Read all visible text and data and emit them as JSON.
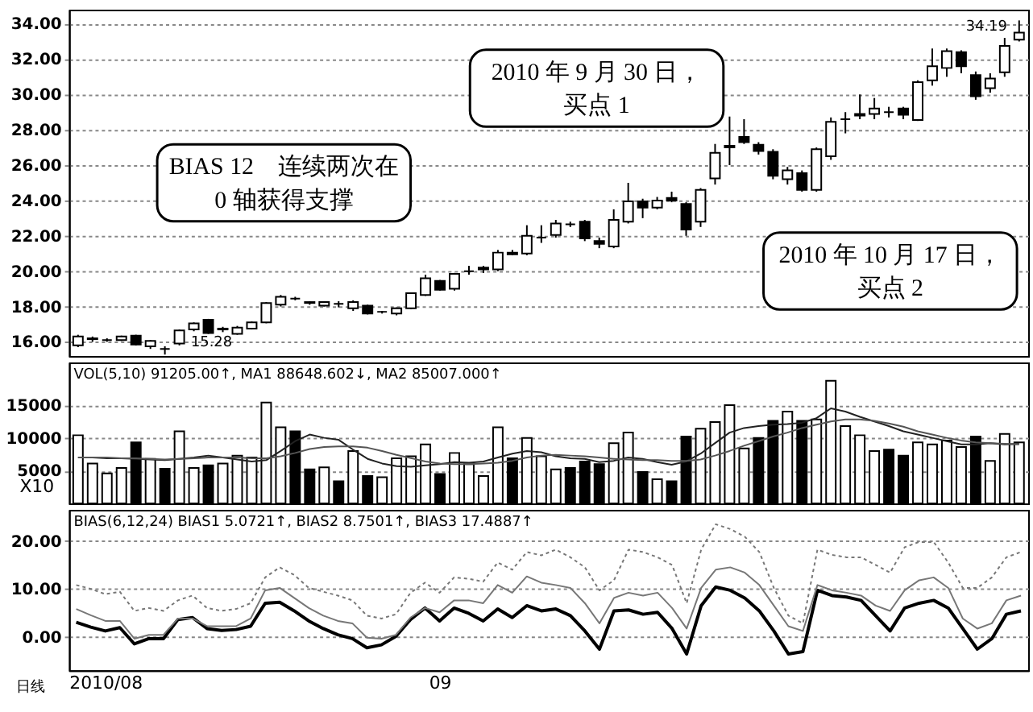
{
  "chart_data": [
    {
      "type": "candlestick",
      "categories": [
        null,
        null,
        null,
        null,
        null,
        null,
        null,
        null,
        null,
        null,
        null,
        null,
        null,
        null,
        null,
        null,
        null,
        null,
        null,
        null,
        null,
        null,
        null,
        null,
        null,
        null,
        null,
        null,
        null,
        null,
        null,
        null,
        null,
        null,
        null,
        null,
        null,
        null,
        null,
        null,
        null,
        null,
        null,
        null,
        null,
        null,
        null,
        null,
        null,
        null,
        null,
        null,
        null,
        null,
        null,
        null,
        null,
        null,
        null,
        null,
        null,
        null,
        null,
        null,
        null,
        null
      ],
      "ohlc": [
        [
          15.8,
          16.4,
          15.7,
          16.3
        ],
        [
          16.15,
          16.3,
          16.0,
          16.2
        ],
        [
          16.1,
          16.2,
          16.0,
          16.1
        ],
        [
          16.1,
          16.35,
          16.05,
          16.3
        ],
        [
          16.35,
          16.4,
          15.8,
          15.85
        ],
        [
          15.75,
          16.1,
          15.6,
          16.05
        ],
        [
          15.6,
          15.75,
          15.28,
          15.6
        ],
        [
          15.9,
          16.7,
          15.8,
          16.65
        ],
        [
          16.7,
          17.1,
          16.6,
          17.05
        ],
        [
          17.25,
          17.3,
          16.45,
          16.5
        ],
        [
          16.75,
          16.85,
          16.55,
          16.7
        ],
        [
          16.45,
          16.9,
          16.4,
          16.8
        ],
        [
          16.75,
          17.15,
          16.7,
          17.1
        ],
        [
          17.1,
          18.25,
          17.05,
          18.2
        ],
        [
          18.1,
          18.65,
          18.0,
          18.55
        ],
        [
          18.45,
          18.55,
          18.35,
          18.45
        ],
        [
          18.25,
          18.3,
          18.1,
          18.2
        ],
        [
          18.05,
          18.3,
          18.0,
          18.25
        ],
        [
          18.15,
          18.3,
          17.95,
          18.15
        ],
        [
          17.9,
          18.35,
          17.75,
          18.25
        ],
        [
          18.05,
          18.1,
          17.55,
          17.6
        ],
        [
          17.7,
          17.75,
          17.6,
          17.7
        ],
        [
          17.6,
          17.95,
          17.5,
          17.9
        ],
        [
          17.9,
          18.8,
          17.85,
          18.75
        ],
        [
          18.65,
          19.8,
          18.6,
          19.6
        ],
        [
          19.45,
          19.5,
          18.9,
          18.95
        ],
        [
          19.0,
          19.9,
          18.9,
          19.85
        ],
        [
          20.0,
          20.3,
          19.8,
          20.0
        ],
        [
          20.2,
          20.3,
          19.9,
          20.1
        ],
        [
          20.1,
          21.2,
          20.0,
          21.05
        ],
        [
          21.05,
          21.2,
          20.9,
          20.95
        ],
        [
          21.0,
          22.6,
          20.9,
          22.0
        ],
        [
          21.9,
          22.6,
          21.6,
          21.9
        ],
        [
          22.05,
          22.9,
          21.9,
          22.7
        ],
        [
          22.65,
          22.8,
          22.5,
          22.65
        ],
        [
          22.8,
          22.9,
          21.7,
          21.85
        ],
        [
          21.7,
          21.9,
          21.3,
          21.55
        ],
        [
          21.4,
          23.5,
          21.3,
          22.9
        ],
        [
          22.8,
          25.0,
          22.7,
          23.95
        ],
        [
          23.95,
          24.1,
          23.0,
          23.6
        ],
        [
          23.6,
          24.2,
          23.5,
          24.0
        ],
        [
          24.15,
          24.5,
          23.9,
          24.0
        ],
        [
          23.8,
          23.9,
          22.0,
          22.35
        ],
        [
          22.8,
          24.7,
          22.5,
          24.6
        ],
        [
          25.25,
          27.2,
          24.9,
          26.7
        ],
        [
          27.1,
          28.75,
          26.0,
          27.0
        ],
        [
          27.6,
          28.6,
          27.2,
          27.3
        ],
        [
          27.15,
          27.3,
          26.6,
          26.8
        ],
        [
          26.75,
          26.9,
          25.2,
          25.4
        ],
        [
          25.2,
          25.9,
          24.9,
          25.7
        ],
        [
          25.55,
          25.7,
          24.5,
          24.6
        ],
        [
          24.6,
          27.0,
          24.5,
          26.9
        ],
        [
          26.5,
          28.7,
          26.3,
          28.45
        ],
        [
          28.6,
          29.0,
          27.8,
          28.6
        ],
        [
          28.9,
          30.0,
          28.6,
          28.8
        ],
        [
          28.9,
          29.8,
          28.6,
          29.2
        ],
        [
          29.0,
          29.3,
          28.7,
          29.0
        ],
        [
          29.2,
          29.3,
          28.6,
          28.85
        ],
        [
          28.55,
          30.8,
          28.5,
          30.7
        ],
        [
          30.8,
          32.6,
          30.5,
          31.6
        ],
        [
          31.5,
          32.6,
          31.0,
          32.45
        ],
        [
          32.4,
          32.5,
          31.2,
          31.6
        ],
        [
          31.1,
          31.3,
          29.7,
          29.9
        ],
        [
          30.35,
          31.2,
          30.1,
          30.9
        ],
        [
          31.25,
          33.2,
          31.0,
          32.75
        ],
        [
          33.1,
          34.19,
          33.0,
          33.5
        ]
      ],
      "ylim": [
        15.2,
        34.8
      ],
      "yticks": [
        {
          "value": 16,
          "label": "16.00"
        },
        {
          "value": 18,
          "label": "18.00"
        },
        {
          "value": 20,
          "label": "20.00"
        },
        {
          "value": 22,
          "label": "22.00"
        },
        {
          "value": 24,
          "label": "24.00"
        },
        {
          "value": 26,
          "label": "26.00"
        },
        {
          "value": 28,
          "label": "28.00"
        },
        {
          "value": 30,
          "label": "30.00"
        },
        {
          "value": 32,
          "label": "32.00"
        },
        {
          "value": 34,
          "label": "34.00"
        }
      ],
      "grid": "y",
      "tick_labels": "y",
      "annotations": [
        "BIAS 12　连续两次在 0 轴获得支撑",
        "2010 年 9 月 30 日，买点 1",
        "2010 年 10 月 17 日，买点 2",
        "34.19",
        "15.28"
      ]
    },
    {
      "type": "bar",
      "categories": [
        null,
        null,
        null,
        null,
        null,
        null,
        null,
        null,
        null,
        null,
        null,
        null,
        null,
        null,
        null,
        null,
        null,
        null,
        null,
        null,
        null,
        null,
        null,
        null,
        null,
        null,
        null,
        null,
        null,
        null,
        null,
        null,
        null,
        null,
        null,
        null,
        null,
        null,
        null,
        null,
        null,
        null,
        null,
        null,
        null,
        null,
        null,
        null,
        null,
        null,
        null,
        null,
        null,
        null,
        null,
        null,
        null,
        null,
        null,
        null,
        null,
        null,
        null,
        null,
        null,
        null
      ],
      "ylabel": "X10",
      "ylim": [
        0,
        21500
      ],
      "yticks": [
        5000,
        10000,
        15000
      ],
      "grid": "y",
      "tick_labels": "y",
      "annotations": [
        "VOL(5,10) 91205.00↑, MA1 88648.602↓, MA2 85007.000↑"
      ],
      "series": [
        {
          "type": "bar",
          "values": [
            10400,
            6100,
            4600,
            5400,
            9300,
            6800,
            5300,
            11000,
            5400,
            5800,
            6100,
            7300,
            7000,
            15400,
            11600,
            11000,
            5200,
            5500,
            3400,
            8000,
            4200,
            4000,
            6900,
            7200,
            9000,
            4500,
            7700,
            6000,
            4200,
            11600,
            6900,
            10000,
            7200,
            5200,
            5400,
            6400,
            6000,
            9200,
            10800,
            4800,
            3700,
            3400,
            10200,
            11400,
            12400,
            15000,
            8400,
            10000,
            12600,
            14000,
            12600,
            12800,
            18700,
            11800,
            10400,
            8000,
            8200,
            7300,
            9300,
            9000,
            9600,
            8600,
            10200,
            6500,
            10600,
            9300
          ],
          "colors": [
            "#ffffff",
            "#ffffff",
            "#ffffff",
            "#ffffff",
            "#000000",
            "#ffffff",
            "#000000",
            "#ffffff",
            "#ffffff",
            "#000000",
            "#ffffff",
            "#ffffff",
            "#ffffff",
            "#ffffff",
            "#ffffff",
            "#000000",
            "#000000",
            "#ffffff",
            "#000000",
            "#ffffff",
            "#000000",
            "#ffffff",
            "#ffffff",
            "#ffffff",
            "#ffffff",
            "#000000",
            "#ffffff",
            "#ffffff",
            "#ffffff",
            "#ffffff",
            "#000000",
            "#ffffff",
            "#ffffff",
            "#ffffff",
            "#000000",
            "#000000",
            "#000000",
            "#ffffff",
            "#ffffff",
            "#000000",
            "#ffffff",
            "#000000",
            "#000000",
            "#ffffff",
            "#ffffff",
            "#ffffff",
            "#ffffff",
            "#000000",
            "#000000",
            "#ffffff",
            "#000000",
            "#ffffff",
            "#ffffff",
            "#ffffff",
            "#ffffff",
            "#ffffff",
            "#000000",
            "#000000",
            "#ffffff",
            "#ffffff",
            "#ffffff",
            "#ffffff",
            "#000000",
            "#ffffff",
            "#ffffff",
            "#ffffff"
          ]
        },
        {
          "type": "line",
          "color": "#222222",
          "line_style": "solid",
          "values": [
            7000,
            7000,
            6900,
            6900,
            6800,
            6700,
            6600,
            6800,
            7000,
            7300,
            7000,
            6700,
            6400,
            6600,
            8000,
            9500,
            10500,
            10000,
            9700,
            8200,
            6800,
            6100,
            5700,
            5600,
            5800,
            6000,
            6300,
            6200,
            6400,
            7000,
            7600,
            8000,
            7800,
            7200,
            6900,
            6800,
            6300,
            6500,
            7000,
            6800,
            6300,
            5900,
            6400,
            7600,
            9200,
            10800,
            11500,
            11800,
            12000,
            12100,
            12300,
            13000,
            14500,
            14000,
            13200,
            12500,
            11800,
            11000,
            10500,
            10000,
            9500,
            9000,
            9000,
            9200,
            9000,
            9100
          ]
        },
        {
          "type": "line",
          "color": "#555555",
          "line_style": "solid",
          "values": [
            7000,
            7000,
            7000,
            6900,
            6900,
            6800,
            6700,
            6800,
            6900,
            7000,
            7000,
            7000,
            6900,
            6900,
            7200,
            7700,
            8300,
            8600,
            8700,
            8700,
            8500,
            8000,
            7400,
            6900,
            6400,
            6100,
            6000,
            6000,
            6100,
            6200,
            6500,
            7000,
            7300,
            7400,
            7300,
            7200,
            7000,
            6800,
            6700,
            6600,
            6600,
            6500,
            6500,
            6700,
            7300,
            8000,
            8800,
            9500,
            10200,
            10800,
            11500,
            12000,
            12500,
            12800,
            12800,
            12600,
            12200,
            11700,
            11000,
            10500,
            10000,
            9600,
            9300,
            9200,
            9100,
            9000
          ]
        }
      ]
    },
    {
      "type": "line",
      "categories": [
        null,
        null,
        "2010/08",
        null,
        null,
        null,
        null,
        null,
        null,
        null,
        null,
        null,
        null,
        null,
        null,
        null,
        null,
        null,
        null,
        null,
        null,
        null,
        null,
        null,
        null,
        "09",
        null,
        null,
        null,
        null,
        null,
        null,
        null,
        null,
        null,
        null,
        null,
        null,
        null,
        null,
        null,
        null,
        null,
        null,
        null,
        null,
        null,
        null,
        null,
        null,
        null,
        null,
        null,
        null,
        null,
        null,
        null,
        null,
        null,
        null,
        null,
        null,
        null,
        null,
        null,
        null
      ],
      "ylim": [
        -7,
        26.5
      ],
      "yticks": [
        {
          "value": 0,
          "label": "0.00"
        },
        {
          "value": 10,
          "label": "10.00"
        },
        {
          "value": 20,
          "label": "20.00"
        }
      ],
      "grid": "y",
      "annotations": [
        "BIAS(6,12,24) BIAS1 5.0721↑, BIAS2 8.7501↑, BIAS3 17.4887↑",
        "日线"
      ],
      "series": [
        {
          "color": "#000000",
          "line_style": "solid",
          "values": [
            3.0,
            2.0,
            1.2,
            1.9,
            -1.5,
            -0.4,
            -0.4,
            3.6,
            4.0,
            1.7,
            1.3,
            1.5,
            2.2,
            7.0,
            7.2,
            5.4,
            3.3,
            1.7,
            0.4,
            -0.4,
            -2.3,
            -1.7,
            0.1,
            3.6,
            6.0,
            3.3,
            6.0,
            4.9,
            3.3,
            5.8,
            4.0,
            6.5,
            5.4,
            5.8,
            4.4,
            1.2,
            -2.6,
            5.4,
            5.6,
            4.7,
            5.1,
            1.7,
            -3.6,
            6.5,
            10.4,
            9.7,
            8.1,
            5.4,
            1.2,
            -3.6,
            -3.1,
            9.7,
            8.6,
            8.3,
            7.6,
            4.4,
            1.2,
            6.0,
            7.0,
            7.6,
            6.0,
            1.7,
            -2.6,
            -0.4,
            4.7,
            5.4
          ]
        },
        {
          "color": "#777777",
          "line_style": "solid",
          "values": [
            5.8,
            4.5,
            3.3,
            3.3,
            -0.4,
            0.4,
            0.4,
            3.8,
            3.8,
            2.2,
            2.2,
            2.2,
            3.8,
            9.7,
            10.2,
            8.1,
            6.0,
            4.4,
            3.3,
            2.8,
            -0.2,
            -0.4,
            0.4,
            4.0,
            6.0,
            5.1,
            7.6,
            7.6,
            7.0,
            10.8,
            9.2,
            12.6,
            11.3,
            10.8,
            10.2,
            7.0,
            2.8,
            8.1,
            9.2,
            8.6,
            9.2,
            6.0,
            1.7,
            10.2,
            14.0,
            14.5,
            13.4,
            10.8,
            6.5,
            2.2,
            1.2,
            10.8,
            9.7,
            9.2,
            8.6,
            6.5,
            5.4,
            9.7,
            11.8,
            12.4,
            10.2,
            3.8,
            1.7,
            2.8,
            7.6,
            8.6
          ]
        },
        {
          "color": "#777777",
          "line_style": "dotted",
          "values": [
            10.8,
            10.0,
            8.9,
            9.4,
            5.4,
            6.0,
            5.4,
            7.6,
            8.6,
            6.0,
            5.4,
            5.8,
            7.0,
            12.4,
            14.5,
            12.9,
            10.2,
            9.4,
            8.6,
            7.6,
            4.4,
            3.8,
            4.7,
            9.2,
            11.3,
            9.2,
            12.4,
            12.1,
            11.5,
            15.5,
            14.0,
            17.7,
            17.0,
            18.2,
            16.6,
            14.5,
            9.7,
            11.8,
            18.2,
            17.7,
            16.6,
            15.0,
            7.0,
            18.2,
            23.5,
            22.5,
            20.9,
            17.7,
            10.2,
            4.4,
            2.8,
            18.2,
            17.1,
            16.6,
            16.6,
            15.0,
            13.4,
            18.7,
            19.8,
            19.8,
            15.5,
            10.2,
            10.2,
            12.4,
            16.6,
            17.7
          ]
        }
      ]
    }
  ]
}
